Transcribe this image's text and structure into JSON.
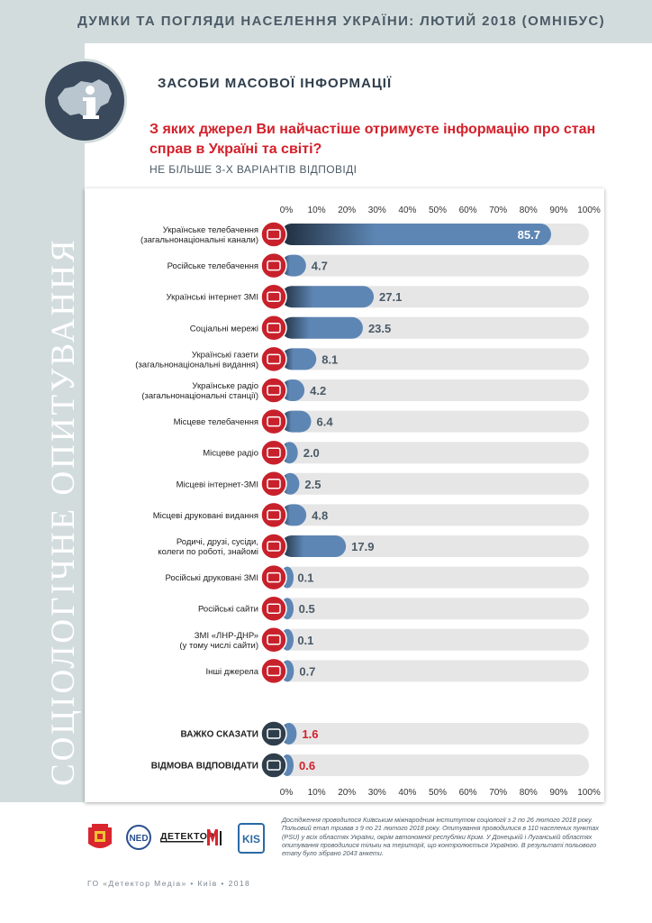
{
  "header": {
    "title": "ДУМКИ ТА ПОГЛЯДИ НАСЕЛЕННЯ УКРАЇНИ: ЛЮТИЙ 2018 (ОМНІБУС)"
  },
  "side_label": "СОЦІОЛОГІЧНЕ ОПИТУВАННЯ",
  "section": {
    "title": "ЗАСОБИ МАСОВОЇ ІНФОРМАЦІЇ",
    "icon": "info-map-icon"
  },
  "question": "З яких джерел Ви найчастіше отримуєте інформацію про стан справ в Україні та світі?",
  "subnote": "НЕ БІЛЬШЕ 3-Х ВАРІАНТІВ ВІДПОВІДІ",
  "chart_data": {
    "type": "bar",
    "orientation": "horizontal",
    "unit": "%",
    "xlim": [
      0,
      100
    ],
    "ticks": [
      "0%",
      "10%",
      "20%",
      "30%",
      "40%",
      "50%",
      "60%",
      "70%",
      "80%",
      "90%",
      "100%"
    ],
    "categories": [
      "Українське телебачення\n(загальнонаціональні канали)",
      "Російське телебачення",
      "Українські інтернет ЗМІ",
      "Соціальні мережі",
      "Українські газети\n(загальнонаціональні видання)",
      "Українське радіо\n(загальнонаціональні станції)",
      "Місцеве телебачення",
      "Місцеве радіо",
      "Місцеві інтернет-ЗМІ",
      "Місцеві друковані видання",
      "Родичі, друзі, сусіди,\nколеги по роботі, знайомі",
      "Російські друковані ЗМІ",
      "Російські сайти",
      "ЗМІ «ЛНР-ДНР»\n(у тому числі сайти)",
      "Інші джерела"
    ],
    "values": [
      85.7,
      4.7,
      27.1,
      23.5,
      8.1,
      4.2,
      6.4,
      2.0,
      2.5,
      4.8,
      17.9,
      0.1,
      0.5,
      0.1,
      0.7
    ],
    "value_labels": [
      "85.7",
      "4.7",
      "27.1",
      "23.5",
      "8.1",
      "4.2",
      "6.4",
      "2.0",
      "2.5",
      "4.8",
      "17.9",
      "0.1",
      "0.5",
      "0.1",
      "0.7"
    ],
    "extra_categories": [
      "ВАЖКО СКАЗАТИ",
      "ВІДМОВА ВІДПОВІДАТИ"
    ],
    "extra_values": [
      1.6,
      0.6
    ],
    "extra_value_labels": [
      "1.6",
      "0.6"
    ],
    "colors": {
      "bar": "#5d86b4",
      "bar_dark": "#1f2c3c",
      "track": "#e6e6e7",
      "label": "#4b5a66",
      "extra_label": "#d4202a",
      "icon_red": "#c8212b",
      "icon_dark": "#2f3e4c"
    }
  },
  "footer": {
    "logos": [
      "КМІС",
      "NED",
      "ДЕТЕКТОР МЕДІА",
      "KIIS"
    ],
    "detector_text": "ДЕТЕКТОР",
    "footnote": "Дослідження проводилося Київським міжнародним інститутом соціології з 2 по 26 лютого 2018 року. Польовий етап тривав з 9 по 21 лютого 2018 року. Опитування проводилися в 110 населених пунктах (PSU) у всіх областях України, окрім автономної республіки Крим. У Донецькій і Луганській областях опитування проводилися тільки на території, що контролюється Україною. В результаті польового етапу було зібрано 2043 анкети.",
    "credit": "ГО «Детектор Медіа» • Київ • 2018"
  }
}
